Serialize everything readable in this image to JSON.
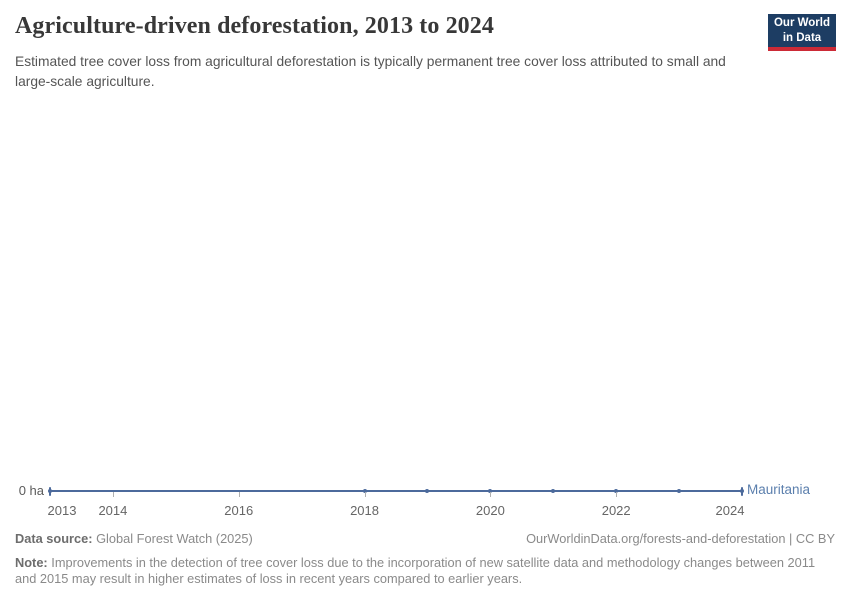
{
  "header": {
    "title": "Agriculture-driven deforestation, 2013 to 2024",
    "subtitle": "Estimated tree cover loss from agricultural deforestation is typically permanent tree cover loss attributed to small and large-scale agriculture.",
    "logo": {
      "line1": "Our World",
      "line2": "in Data",
      "bg_color": "#1d3d63",
      "bar_color": "#cc2a36"
    }
  },
  "chart": {
    "y_axis_label": "0 ha",
    "entity_label": "Mauritania",
    "line_color": "#4c6a9c",
    "entity_label_color": "#5b7fad",
    "layout": {
      "x_start": 50,
      "x_end": 742,
      "line_y": 490,
      "year_min": 2013,
      "year_max": 2024,
      "tick_label_top": 503,
      "marker_years": [
        2013,
        2018,
        2019,
        2020,
        2021,
        2022,
        2023,
        2024
      ],
      "gray_tick_years": [
        2014,
        2016,
        2018,
        2020,
        2022
      ],
      "x_tick_labels": [
        {
          "label": "2013",
          "year": 2013,
          "dx": 12
        },
        {
          "label": "2014",
          "year": 2014,
          "dx": 0
        },
        {
          "label": "2016",
          "year": 2016,
          "dx": 0
        },
        {
          "label": "2018",
          "year": 2018,
          "dx": 0
        },
        {
          "label": "2020",
          "year": 2020,
          "dx": 0
        },
        {
          "label": "2022",
          "year": 2022,
          "dx": 0
        },
        {
          "label": "2024",
          "year": 2024,
          "dx": -12
        }
      ]
    }
  },
  "chart_data": {
    "type": "line",
    "title": "Agriculture-driven deforestation, 2013 to 2024",
    "xlabel": "",
    "ylabel": "",
    "unit": "ha",
    "x": [
      2013,
      2014,
      2015,
      2016,
      2017,
      2018,
      2019,
      2020,
      2021,
      2022,
      2023,
      2024
    ],
    "series": [
      {
        "name": "Mauritania",
        "color": "#4c6a9c",
        "values": [
          0,
          0,
          0,
          0,
          0,
          0,
          0,
          0,
          0,
          0,
          0,
          0
        ]
      }
    ],
    "ylim": [
      0,
      0
    ],
    "y_tick_labels": [
      "0 ha"
    ],
    "x_tick_labels": [
      "2013",
      "2014",
      "2016",
      "2018",
      "2020",
      "2022",
      "2024"
    ],
    "grid": false,
    "legend_position": "end-of-line-label"
  },
  "footer": {
    "source_label": "Data source:",
    "source_text": "Global Forest Watch (2025)",
    "link": "OurWorldinData.org/forests-and-deforestation | CC BY",
    "note_label": "Note:",
    "note_text": "Improvements in the detection of tree cover loss due to the incorporation of new satellite data and methodology changes between 2011 and 2015 may result in higher estimates of loss in recent years compared to earlier years."
  }
}
